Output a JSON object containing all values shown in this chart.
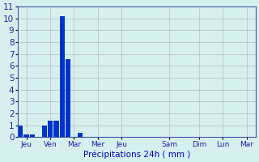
{
  "bar_values": [
    1.0,
    0.2,
    0.2,
    0.0,
    1.0,
    1.4,
    1.4,
    10.2,
    6.6,
    0.0,
    0.35,
    0.0,
    0.0,
    0.0,
    0.0,
    0.0,
    0.0,
    0.0,
    0.0,
    0.0,
    0.0,
    0.0,
    0.0,
    0.0,
    0.0,
    0.0,
    0.0,
    0.0,
    0.0,
    0.0,
    0.0,
    0.0,
    0.0,
    0.0,
    0.0,
    0.0,
    0.0,
    0.0,
    0.0,
    0.0
  ],
  "bar_color": "#0033cc",
  "background_color": "#d6f0f0",
  "grid_color": "#bbbbbb",
  "xlabel": "Précipitations 24h ( mm )",
  "xlabel_color": "#0000bb",
  "xlabel_fontsize": 7.5,
  "ylim": [
    0,
    11
  ],
  "yticks": [
    0,
    1,
    2,
    3,
    4,
    5,
    6,
    7,
    8,
    9,
    10,
    11
  ],
  "tick_color": "#2222aa",
  "tick_fontsize": 6.5,
  "n_bars": 40,
  "day_positions": [
    1,
    5,
    9,
    13,
    17,
    25,
    30,
    34,
    38
  ],
  "day_labels": [
    "Jeu",
    "Ven",
    "Mar",
    "Mer",
    "Jeu",
    "Sam",
    "Dim",
    "Lun",
    "Mar"
  ]
}
